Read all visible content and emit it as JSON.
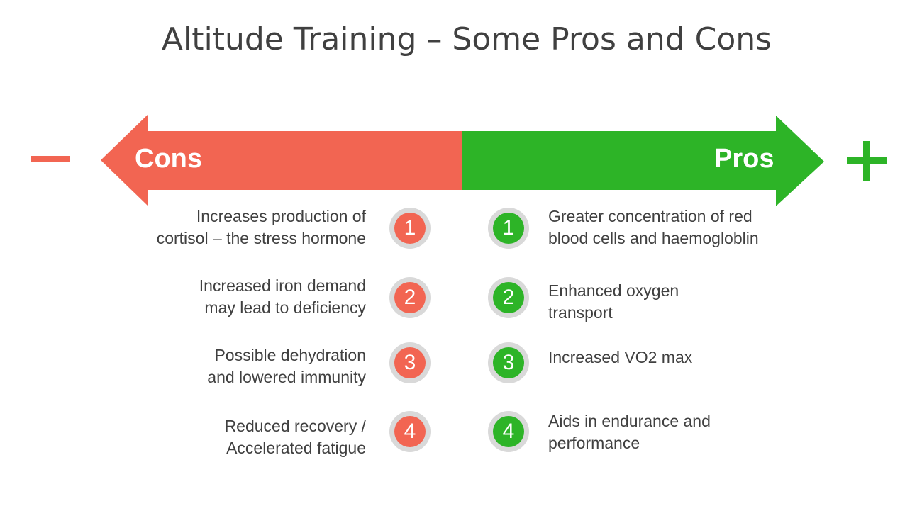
{
  "title": "Altitude Training – Some Pros and Cons",
  "colors": {
    "cons": "#f26552",
    "pros": "#2db427",
    "text": "#404040",
    "badge_ring": "#d9d9d9"
  },
  "arrow": {
    "cons_label": "Cons",
    "pros_label": "Pros",
    "minus_icon": "minus-icon",
    "plus_icon": "plus-icon"
  },
  "cons": [
    {
      "number": "1",
      "line1": "Increases production of",
      "line2": "cortisol – the stress hormone"
    },
    {
      "number": "2",
      "line1": "Increased iron demand",
      "line2": "may lead to deficiency"
    },
    {
      "number": "3",
      "line1": "Possible dehydration",
      "line2": "and lowered immunity"
    },
    {
      "number": "4",
      "line1": "Reduced recovery /",
      "line2": "Accelerated fatigue"
    }
  ],
  "pros": [
    {
      "number": "1",
      "line1": "Greater concentration of red",
      "line2": "blood cells and haemogloblin"
    },
    {
      "number": "2",
      "line1": "Enhanced oxygen",
      "line2": "transport"
    },
    {
      "number": "3",
      "line1": "Increased VO2 max",
      "line2": ""
    },
    {
      "number": "4",
      "line1": "Aids in endurance and",
      "line2": "performance"
    }
  ]
}
